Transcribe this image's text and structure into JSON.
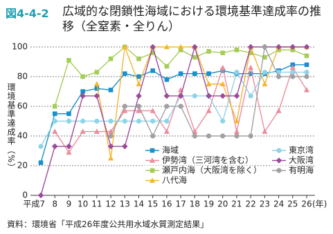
{
  "chart_data": {
    "type": "line",
    "figure_number": "図4-4-2",
    "title": "広域的な閉鎖性海域における環境基準達成率の推移（全窒素・全りん）",
    "y_label": "環境基準達成率（%）",
    "x_unit": "(年)",
    "source": "資料：環境省「平成26年度公共用水域水質測定結果」",
    "categories": [
      "平成7",
      "8",
      "9",
      "10",
      "11",
      "12",
      "13",
      "14",
      "15",
      "16",
      "17",
      "18",
      "19",
      "20",
      "21",
      "22",
      "23",
      "24",
      "25",
      "26"
    ],
    "ylim": [
      0,
      100
    ],
    "yticks": [
      0,
      20,
      40,
      60,
      80,
      100
    ],
    "grid": true,
    "legend": "lower right",
    "series": [
      {
        "name": "海域",
        "color": "#1a8fc9",
        "marker": "square",
        "values": [
          22,
          55,
          55,
          70,
          72,
          71,
          82,
          80,
          84,
          78,
          82,
          82,
          82,
          84,
          82,
          82,
          82,
          84,
          88,
          88
        ]
      },
      {
        "name": "伊勢湾（三河湾を含む）",
        "color": "#ee8c9c",
        "marker": "triangle",
        "values": [
          null,
          43,
          29,
          43,
          43,
          43,
          57,
          57,
          57,
          43,
          71,
          43,
          57,
          86,
          43,
          86,
          43,
          57,
          86,
          71
        ]
      },
      {
        "name": "瀬戸内海（大阪湾を除く）",
        "color": "#a5cd55",
        "marker": "square",
        "values": [
          null,
          60,
          91,
          80,
          83,
          92,
          100,
          92,
          96,
          87,
          98,
          93,
          97,
          96,
          98,
          96,
          93,
          98,
          98,
          94
        ]
      },
      {
        "name": "八代海",
        "color": "#f5b531",
        "marker": "triangle",
        "values": [
          null,
          null,
          null,
          null,
          75,
          25,
          100,
          75,
          100,
          100,
          100,
          100,
          75,
          75,
          50,
          100,
          75,
          100,
          100,
          100
        ]
      },
      {
        "name": "東京湾",
        "color": "#8fd3e8",
        "marker": "circle",
        "values": [
          33,
          50,
          50,
          50,
          50,
          50,
          50,
          50,
          50,
          50,
          67,
          67,
          67,
          50,
          83,
          67,
          83,
          83,
          83,
          83
        ]
      },
      {
        "name": "大阪湾",
        "color": "#9c4a9a",
        "marker": "diamond",
        "values": [
          0,
          33,
          33,
          67,
          67,
          33,
          33,
          67,
          100,
          67,
          67,
          100,
          67,
          67,
          67,
          100,
          100,
          100,
          100,
          100
        ]
      },
      {
        "name": "有明海",
        "color": "#a0a0a0",
        "marker": "circle",
        "values": [
          null,
          null,
          null,
          null,
          null,
          40,
          60,
          60,
          40,
          60,
          60,
          40,
          40,
          40,
          40,
          40,
          100,
          80,
          80,
          80
        ]
      }
    ]
  }
}
